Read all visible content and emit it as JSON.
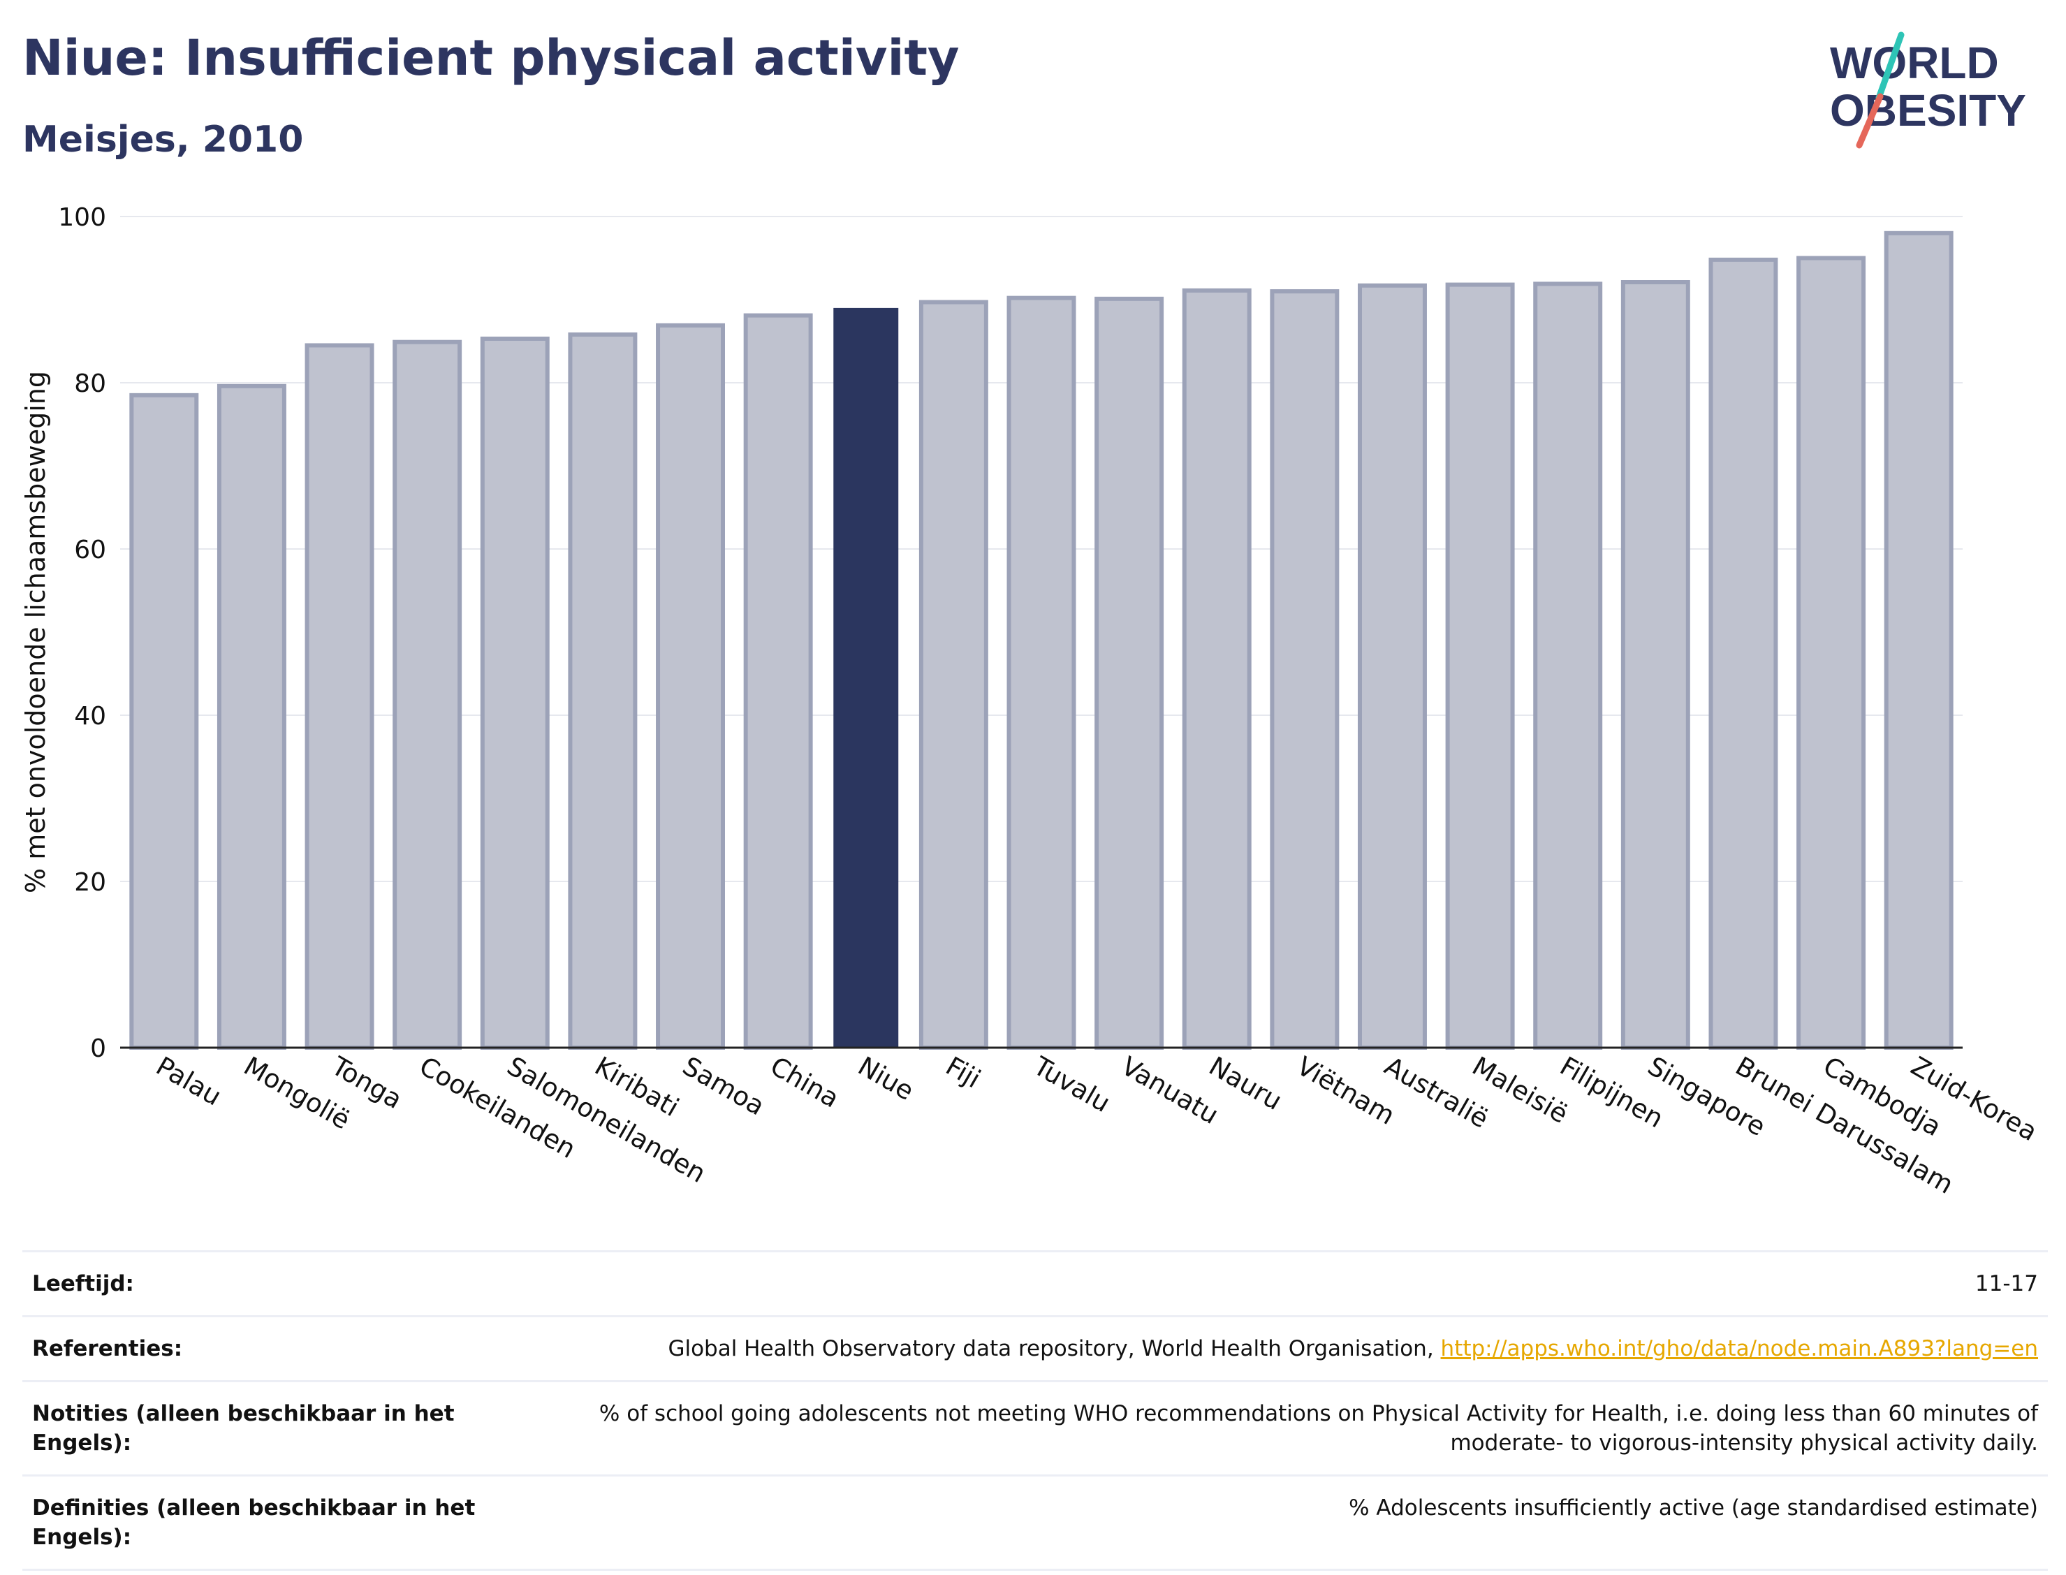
{
  "header": {
    "title": "Niue: Insufficient physical activity",
    "subtitle": "Meisjes, 2010"
  },
  "logo": {
    "line1": "WORLD",
    "line2": "OBESITY"
  },
  "colors": {
    "highlight_bar": "#2b365f",
    "other_bar_fill": "#bfc2cf",
    "other_bar_border": "#9ca2b8",
    "title": "#2d3560",
    "link": "#e6a700"
  },
  "chart_data": {
    "type": "bar",
    "ylabel": "% met onvoldoende lichaamsbeweging",
    "ylim": [
      0,
      100
    ],
    "yticks": [
      0,
      20,
      40,
      60,
      80,
      100
    ],
    "grid": true,
    "highlight": "Niue",
    "categories": [
      "Palau",
      "Mongolië",
      "Tonga",
      "Cookeilanden",
      "Salomoneilanden",
      "Kiribati",
      "Samoa",
      "China",
      "Niue",
      "Fiji",
      "Tuvalu",
      "Vanuatu",
      "Nauru",
      "Viëtnam",
      "Australië",
      "Maleisië",
      "Filipijnen",
      "Singapore",
      "Brunei Darussalam",
      "Cambodja",
      "Zuid-Korea"
    ],
    "values": [
      78.5,
      79.6,
      84.5,
      84.9,
      85.3,
      85.8,
      86.9,
      88.1,
      89.0,
      89.7,
      90.2,
      90.1,
      91.1,
      91.0,
      91.7,
      91.8,
      91.9,
      92.1,
      94.8,
      95.0,
      98.0
    ]
  },
  "meta": {
    "age_label": "Leeftijd:",
    "age_value": "11-17",
    "ref_label": "Referenties:",
    "ref_text": "Global Health Observatory data repository, World Health Organisation, ",
    "ref_link": "http://apps.who.int/gho/data/node.main.A893?lang=en",
    "notes_label": "Notities (alleen beschikbaar in het Engels):",
    "notes_value": "% of school going adolescents not meeting WHO recommendations on Physical Activity for Health, i.e. doing less than 60 minutes of moderate- to vigorous-intensity physical activity daily.",
    "def_label": "Definities (alleen beschikbaar in het Engels):",
    "def_value": "% Adolescents insufficiently active (age standardised estimate)"
  }
}
